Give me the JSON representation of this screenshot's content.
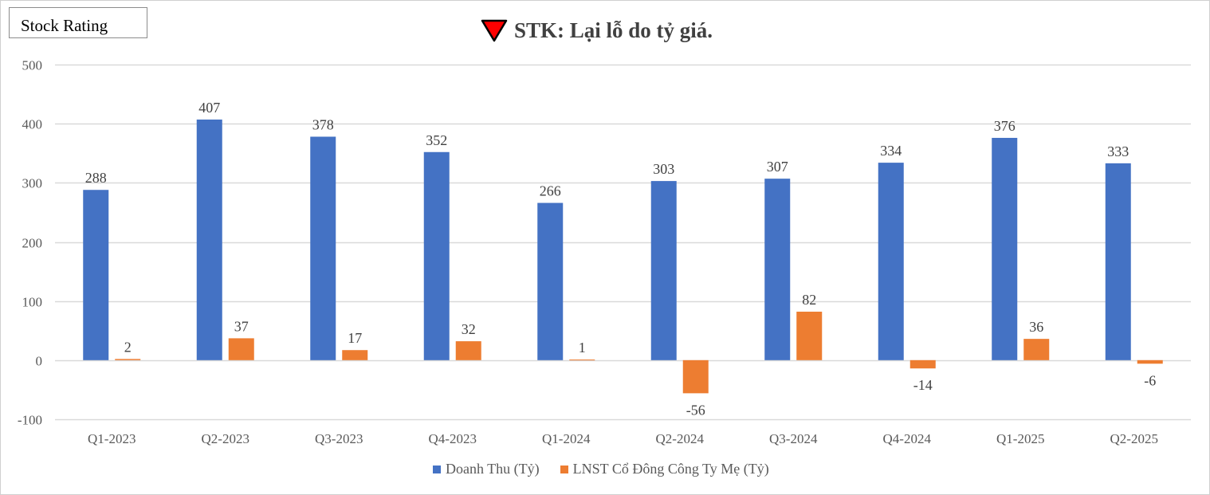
{
  "badge": {
    "label": "Stock Rating"
  },
  "header": {
    "title": "STK: Lại lỗ do tỷ giá.",
    "icon": "red-down-triangle-icon",
    "icon_color": "#ff0000"
  },
  "colors": {
    "revenue": "#4472c4",
    "profit": "#ed7d31",
    "grid": "#d9d9d9"
  },
  "chart_data": {
    "type": "bar",
    "categories": [
      "Q1-2023",
      "Q2-2023",
      "Q3-2023",
      "Q4-2023",
      "Q1-2024",
      "Q2-2024",
      "Q3-2024",
      "Q4-2024",
      "Q1-2025",
      "Q2-2025"
    ],
    "series": [
      {
        "name": "Doanh Thu (Tỷ)",
        "values": [
          288,
          407,
          378,
          352,
          266,
          303,
          307,
          334,
          376,
          333
        ]
      },
      {
        "name": "LNST Cổ Đông Công Ty Mẹ (Tỷ)",
        "values": [
          2,
          37,
          17,
          32,
          1,
          -56,
          82,
          -14,
          36,
          -6
        ]
      }
    ],
    "yticks": [
      500,
      400,
      300,
      200,
      100,
      0,
      -100
    ],
    "ylim": [
      -100,
      500
    ],
    "grid": true,
    "legend_position": "bottom"
  }
}
